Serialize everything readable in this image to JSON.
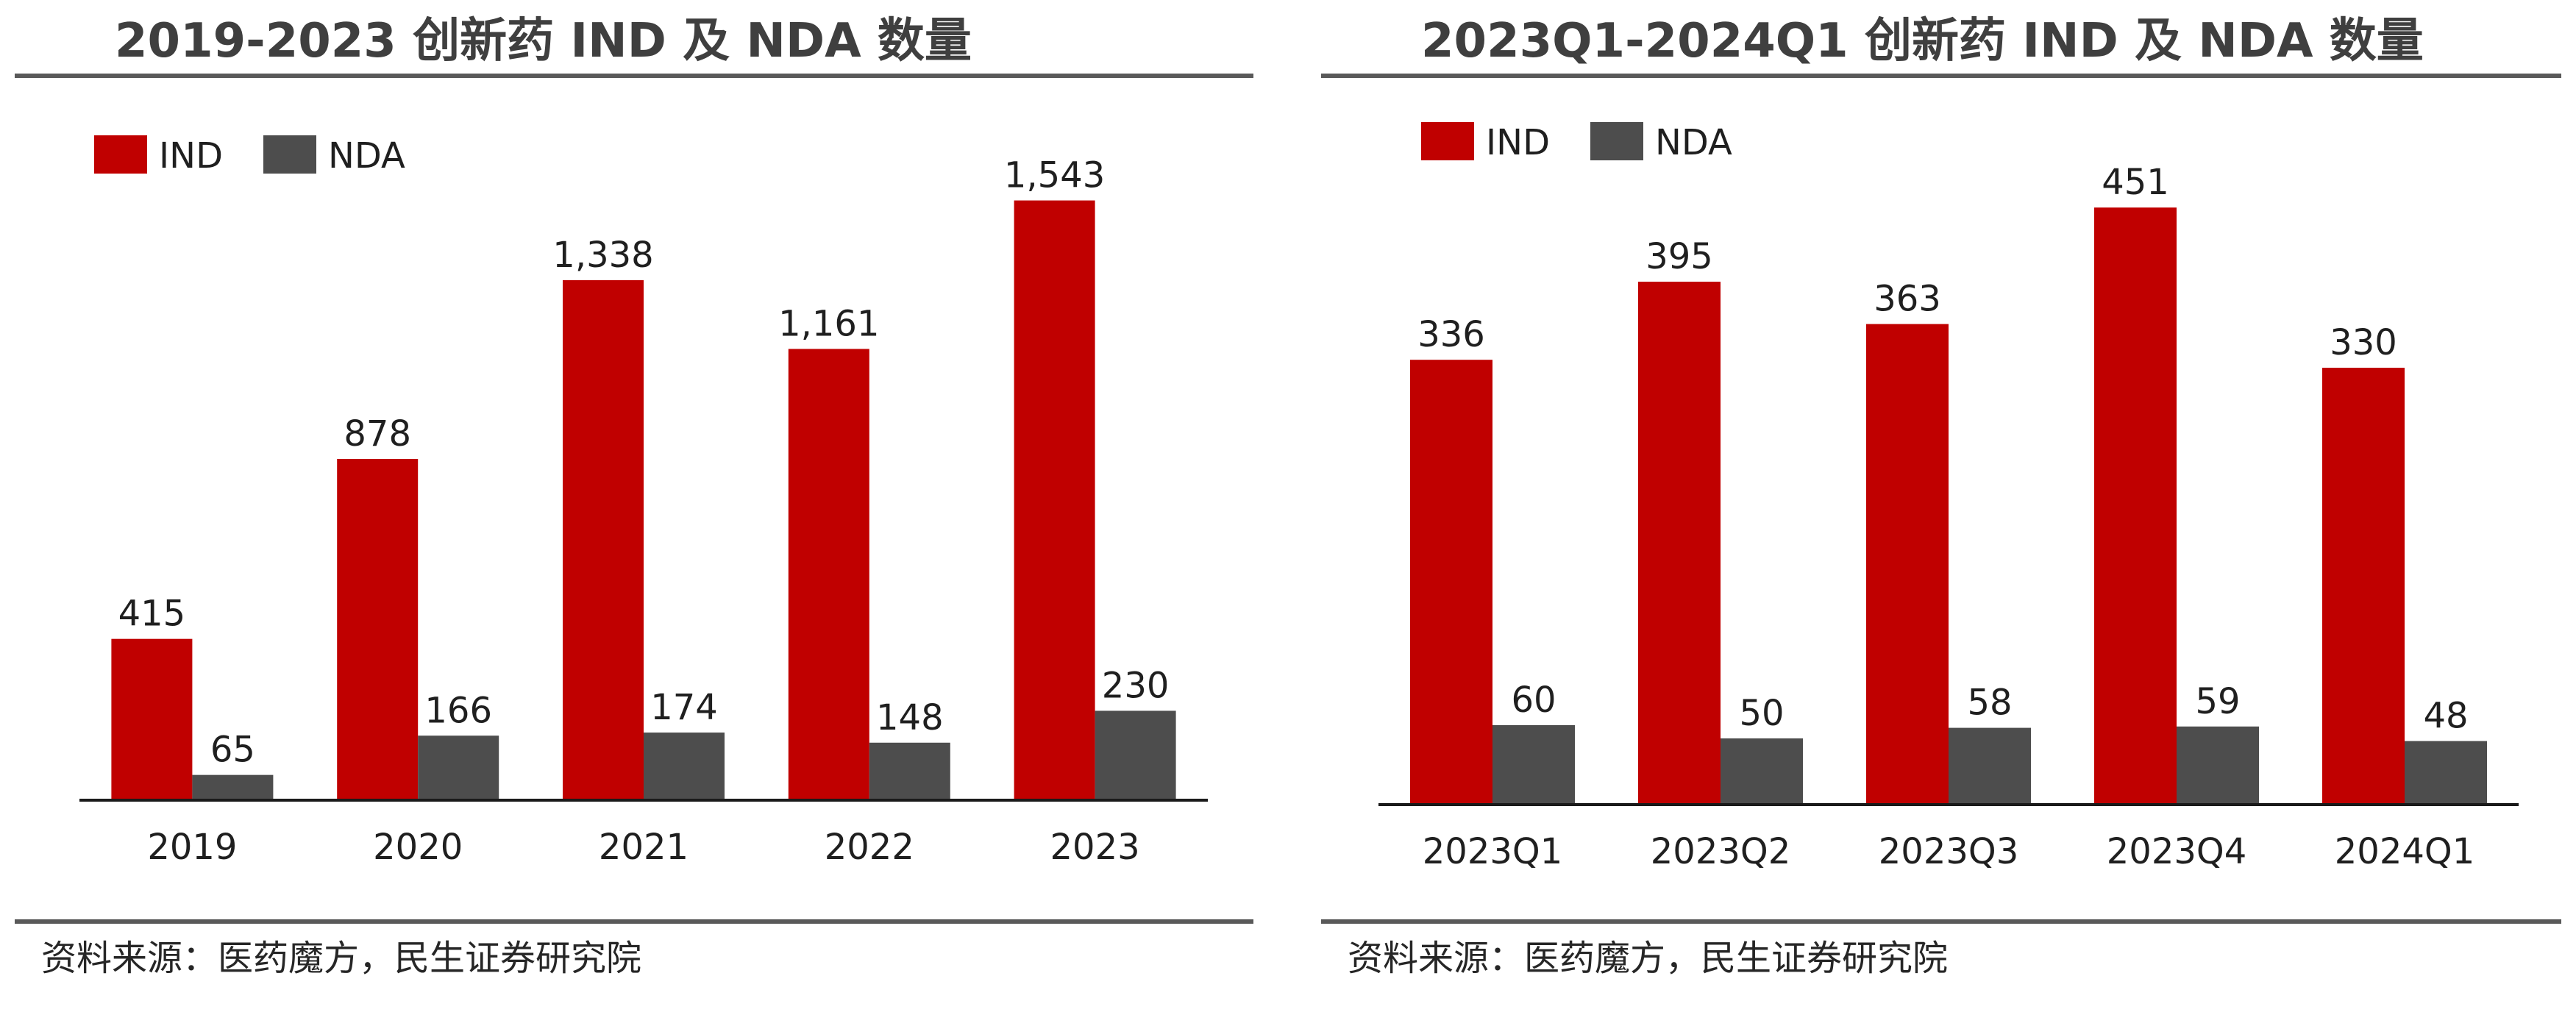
{
  "chart_data": [
    {
      "type": "bar",
      "title": "2019-2023 创新药 IND 及 NDA 数量",
      "categories": [
        "2019",
        "2020",
        "2021",
        "2022",
        "2023"
      ],
      "series": [
        {
          "name": "IND",
          "values": [
            415,
            878,
            1338,
            1161,
            1543
          ],
          "labels": [
            "415",
            "878",
            "1,338",
            "1,161",
            "1,543"
          ],
          "color": "#c00000"
        },
        {
          "name": "NDA",
          "values": [
            65,
            166,
            174,
            148,
            230
          ],
          "labels": [
            "65",
            "166",
            "174",
            "148",
            "230"
          ],
          "color": "#4d4d4d"
        }
      ],
      "ylim": [
        0,
        1650
      ],
      "legend": "top-left",
      "xlabel": "",
      "ylabel": "",
      "source": "资料来源：医药魔方，民生证券研究院"
    },
    {
      "type": "bar",
      "title": "2023Q1-2024Q1 创新药 IND 及 NDA 数量",
      "categories": [
        "2023Q1",
        "2023Q2",
        "2023Q3",
        "2023Q4",
        "2024Q1"
      ],
      "series": [
        {
          "name": "IND",
          "values": [
            336,
            395,
            363,
            451,
            330
          ],
          "labels": [
            "336",
            "395",
            "363",
            "451",
            "330"
          ],
          "color": "#c00000"
        },
        {
          "name": "NDA",
          "values": [
            60,
            50,
            58,
            59,
            48
          ],
          "labels": [
            "60",
            "50",
            "58",
            "59",
            "48"
          ],
          "color": "#4d4d4d"
        }
      ],
      "ylim": [
        0,
        480
      ],
      "legend": "top-left",
      "xlabel": "",
      "ylabel": "",
      "source": "资料来源：医药魔方，民生证券研究院"
    }
  ]
}
